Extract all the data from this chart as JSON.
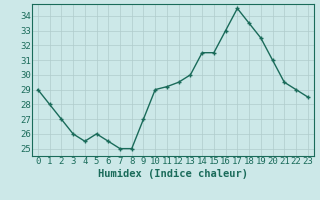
{
  "xlabel": "Humidex (Indice chaleur)",
  "x": [
    0,
    1,
    2,
    3,
    4,
    5,
    6,
    7,
    8,
    9,
    10,
    11,
    12,
    13,
    14,
    15,
    16,
    17,
    18,
    19,
    20,
    21,
    22,
    23
  ],
  "y": [
    29,
    28,
    27,
    26,
    25.5,
    26,
    25.5,
    25,
    25,
    27,
    29,
    29.2,
    29.5,
    30,
    31.5,
    31.5,
    33,
    34.5,
    33.5,
    32.5,
    31,
    29.5,
    29,
    28.5
  ],
  "line_color": "#1a6b5a",
  "marker": "+",
  "marker_color": "#1a6b5a",
  "bg_color": "#cce8e8",
  "grid_color": "#b0cccc",
  "axis_color": "#1a6b5a",
  "tick_label_color": "#1a6b5a",
  "xlabel_color": "#1a6b5a",
  "ylim": [
    24.5,
    34.8
  ],
  "xlim": [
    -0.5,
    23.5
  ],
  "yticks": [
    25,
    26,
    27,
    28,
    29,
    30,
    31,
    32,
    33,
    34
  ],
  "xticks": [
    0,
    1,
    2,
    3,
    4,
    5,
    6,
    7,
    8,
    9,
    10,
    11,
    12,
    13,
    14,
    15,
    16,
    17,
    18,
    19,
    20,
    21,
    22,
    23
  ],
  "xlabel_fontsize": 7.5,
  "tick_fontsize": 6.5,
  "linewidth": 1.0,
  "markersize": 3.5
}
